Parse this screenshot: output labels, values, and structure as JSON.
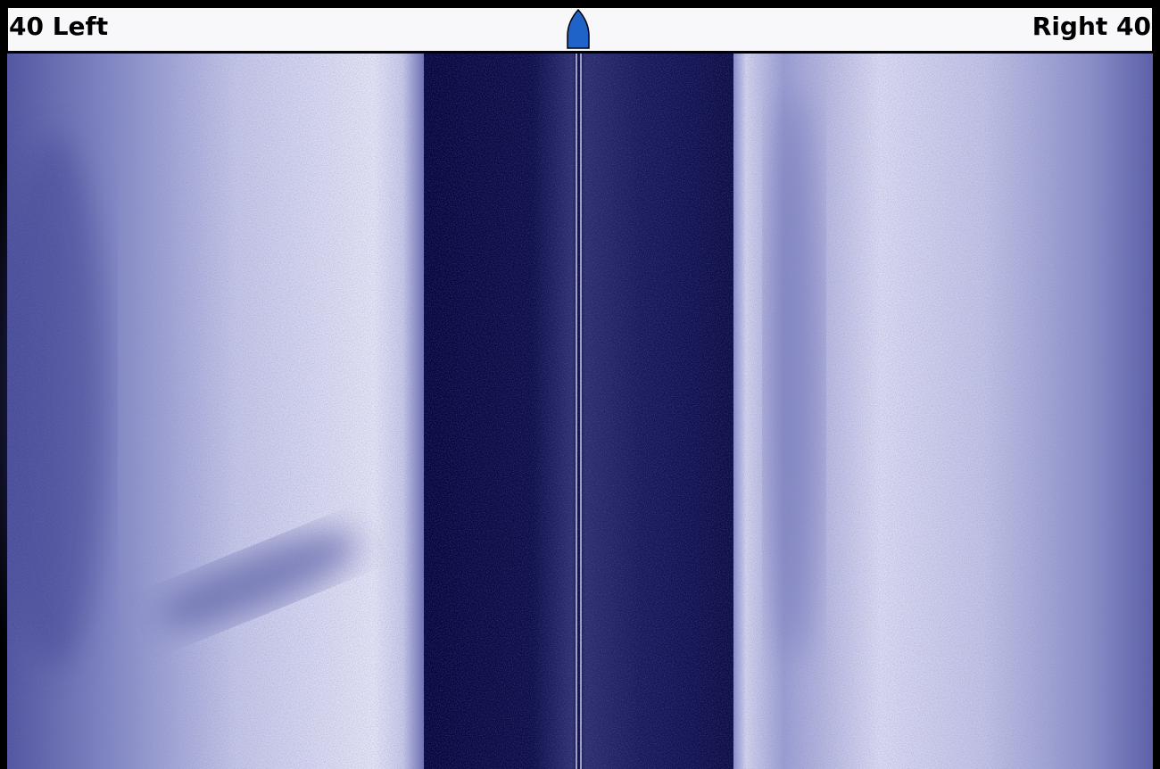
{
  "header": {
    "left": "40 Left",
    "right": "Right 40"
  }
}
